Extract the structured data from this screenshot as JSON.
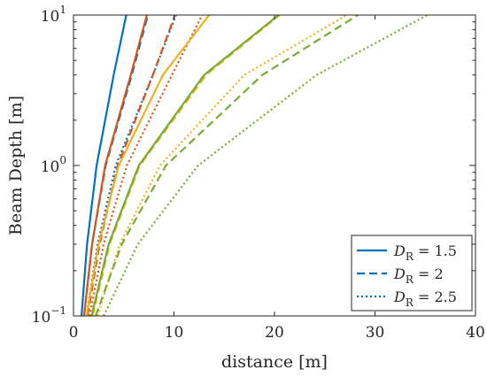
{
  "chart_data": {
    "type": "line",
    "xlabel": "distance [m]",
    "ylabel": "Beam Depth [m]",
    "xlim": [
      0,
      40
    ],
    "ylim": [
      0.1,
      10
    ],
    "yscale": "log",
    "grid": false,
    "legend_position": "bottom-right",
    "x_ticks": [
      0,
      10,
      20,
      30,
      40
    ],
    "y_ticks": [
      {
        "value": 0.1,
        "base": "10",
        "exp": "−1"
      },
      {
        "value": 1,
        "base": "10",
        "exp": "0"
      },
      {
        "value": 10,
        "base": "10",
        "exp": "1"
      }
    ],
    "legend": [
      {
        "symbol": "D",
        "subscript": "R",
        "value": "= 1.5",
        "style": "solid"
      },
      {
        "symbol": "D",
        "subscript": "R",
        "value": "= 2",
        "style": "dashed"
      },
      {
        "symbol": "D",
        "subscript": "R",
        "value": "= 2.5",
        "style": "dotted"
      }
    ],
    "colors": {
      "blue": "#0072BD",
      "orange": "#D95319",
      "yellow": "#EDB120",
      "green": "#77AC30"
    },
    "series": [
      {
        "color": "blue",
        "style": "solid",
        "x": [
          0.8,
          1.35,
          2.3,
          4.0,
          5.25
        ],
        "y": [
          0.1,
          0.3,
          1,
          4,
          10
        ]
      },
      {
        "color": "blue",
        "style": "dashed",
        "x": [
          1.05,
          1.85,
          3.2,
          5.8,
          7.4
        ],
        "y": [
          0.1,
          0.3,
          1,
          4,
          10
        ]
      },
      {
        "color": "blue",
        "style": "dotted",
        "x": [
          1.3,
          2.4,
          4.2,
          7.9,
          10.2
        ],
        "y": [
          0.1,
          0.3,
          1,
          4,
          10
        ]
      },
      {
        "color": "orange",
        "style": "solid",
        "x": [
          1.05,
          1.85,
          3.15,
          5.7,
          7.3
        ],
        "y": [
          0.1,
          0.3,
          1,
          4,
          10
        ]
      },
      {
        "color": "orange",
        "style": "dashed",
        "x": [
          1.4,
          2.6,
          4.4,
          7.9,
          10.1
        ],
        "y": [
          0.1,
          0.3,
          1,
          4,
          10
        ]
      },
      {
        "color": "orange",
        "style": "dotted",
        "x": [
          1.6,
          3.0,
          5.3,
          9.8,
          12.8
        ],
        "y": [
          0.1,
          0.3,
          1,
          4,
          10
        ]
      },
      {
        "color": "yellow",
        "style": "solid",
        "x": [
          1.3,
          2.5,
          4.5,
          8.9,
          13.5
        ],
        "y": [
          0.1,
          0.3,
          1,
          4,
          10
        ]
      },
      {
        "color": "yellow",
        "style": "dashed",
        "x": [
          1.9,
          3.6,
          6.6,
          13.2,
          20.5
        ],
        "y": [
          0.1,
          0.3,
          1,
          4,
          10
        ]
      },
      {
        "color": "yellow",
        "style": "dotted",
        "x": [
          2.4,
          4.6,
          8.6,
          17.0,
          27.2
        ],
        "y": [
          0.1,
          0.3,
          1,
          4,
          10
        ]
      },
      {
        "color": "green",
        "style": "solid",
        "x": [
          1.8,
          3.5,
          6.5,
          13.0,
          20.4
        ],
        "y": [
          0.1,
          0.3,
          1,
          4,
          10
        ]
      },
      {
        "color": "green",
        "style": "dashed",
        "x": [
          2.2,
          4.8,
          9.2,
          18.8,
          28.3
        ],
        "y": [
          0.1,
          0.3,
          1,
          4,
          10
        ]
      },
      {
        "color": "green",
        "style": "dotted",
        "x": [
          3.0,
          6.4,
          12.4,
          24.2,
          35.2
        ],
        "y": [
          0.1,
          0.3,
          1,
          4,
          10
        ]
      }
    ]
  }
}
